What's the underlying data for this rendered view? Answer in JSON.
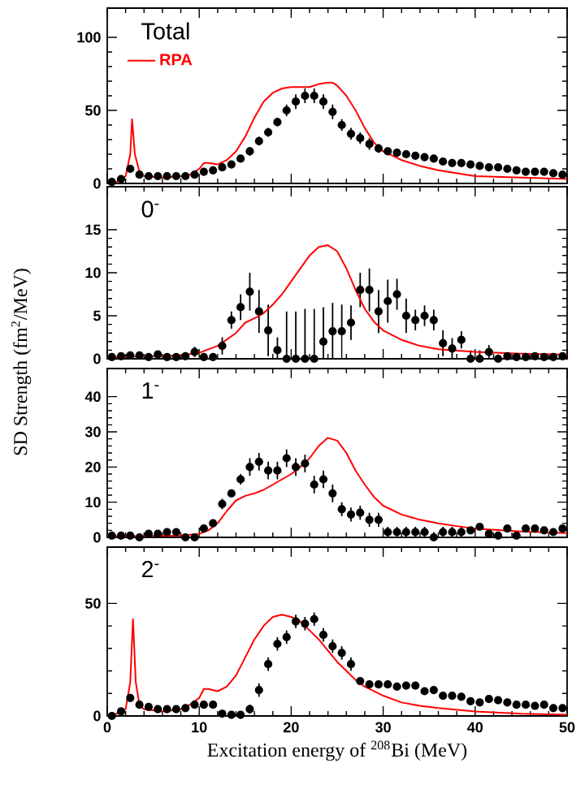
{
  "chart_data": [
    {
      "type": "scatter",
      "title": "Total",
      "xlim": [
        0,
        50
      ],
      "xticks": [
        0,
        10,
        20,
        30,
        40,
        50
      ],
      "ylim": [
        0,
        120
      ],
      "yticks": [
        0,
        50,
        100
      ],
      "tick_labels": "y",
      "legend": "top left",
      "series": [
        {
          "color": "#000000",
          "marker": "circle",
          "x": [
            0.5,
            1.5,
            2.5,
            3.5,
            4.5,
            5.5,
            6.5,
            7.5,
            8.5,
            9.5,
            10.5,
            11.5,
            12.5,
            13.5,
            14.5,
            15.5,
            16.5,
            17.5,
            18.5,
            19.5,
            20.5,
            21.5,
            22.5,
            23.5,
            24.5,
            25.5,
            26.5,
            27.5,
            28.5,
            29.5,
            30.5,
            31.5,
            32.5,
            33.5,
            34.5,
            35.5,
            36.5,
            37.5,
            38.5,
            39.5,
            40.5,
            41.5,
            42.5,
            43.5,
            44.5,
            45.5,
            46.5,
            47.5,
            48.5,
            49.5
          ],
          "values": [
            1,
            3,
            10,
            6,
            5,
            5,
            5,
            5,
            5,
            6,
            8,
            9,
            11,
            13,
            17,
            22,
            29,
            35,
            42,
            50,
            56,
            60,
            60,
            56,
            49,
            40,
            34,
            31,
            27,
            24,
            22,
            21,
            20,
            19,
            18,
            17,
            15,
            14,
            14,
            13,
            12,
            11,
            11,
            10,
            9,
            8,
            8,
            8,
            7,
            6
          ],
          "errors": [
            [
              0,
              2
            ],
            1,
            1.5,
            1,
            1,
            1,
            1,
            1,
            1,
            1,
            1.5,
            1.5,
            1.5,
            1.5,
            2,
            3,
            3,
            3,
            3,
            4,
            5,
            5,
            5,
            5,
            5,
            4,
            4,
            4,
            4,
            3,
            2.5,
            2.5,
            2.5,
            2.5,
            2.5,
            2.5,
            2.5,
            2,
            2,
            2,
            1.5,
            1.5,
            1.5,
            1.5,
            1.5,
            1.5,
            1.5,
            1.5,
            1.5,
            1.5
          ]
        },
        {
          "name": "RPA",
          "type": "line",
          "color": "#ff0000",
          "marker": "none",
          "x": [
            0,
            1,
            2,
            2.5,
            2.7,
            3,
            3.5,
            4,
            6,
            8,
            9,
            10,
            10.5,
            11,
            12,
            13,
            14,
            15,
            16,
            17,
            18,
            19,
            20,
            22,
            23,
            24,
            24.5,
            25,
            26,
            27,
            28,
            29,
            30,
            32,
            34,
            36,
            38,
            40,
            45,
            50
          ],
          "values": [
            0,
            1,
            5,
            20,
            44,
            20,
            8,
            5,
            4,
            5,
            6,
            10,
            14,
            14,
            13,
            16,
            22,
            32,
            45,
            56,
            62,
            65,
            66,
            66,
            68,
            69,
            69,
            67,
            60,
            50,
            38,
            28,
            22,
            16,
            12,
            9,
            7,
            5,
            4,
            3
          ]
        }
      ]
    },
    {
      "type": "scatter",
      "title": "0$^{-}$",
      "ylabel": "SD Strength (fm$^{2}$/MeV)",
      "xlim": [
        0,
        50
      ],
      "xticks": [
        0,
        10,
        20,
        30,
        40,
        50
      ],
      "ylim": [
        0,
        20
      ],
      "yticks": [
        0,
        5,
        10,
        15
      ],
      "tick_labels": "y",
      "series": [
        {
          "color": "#000000",
          "marker": "circle",
          "x": [
            0.5,
            1.5,
            2.5,
            3.5,
            4.5,
            5.5,
            6.5,
            7.5,
            8.5,
            9.5,
            10.5,
            11.5,
            12.5,
            13.5,
            14.5,
            15.5,
            16.5,
            17.5,
            18.5,
            19.5,
            20.5,
            21.5,
            22.5,
            23.5,
            24.5,
            25.5,
            26.5,
            27.5,
            28.5,
            29.5,
            30.5,
            31.5,
            32.5,
            33.5,
            34.5,
            35.5,
            36.5,
            37.5,
            38.5,
            39.5,
            40.5,
            41.5,
            42.5,
            43.5,
            44.5,
            45.5,
            46.5,
            47.5,
            48.5,
            49.5
          ],
          "values": [
            0.2,
            0.3,
            0.4,
            0.4,
            0.2,
            0.5,
            0.2,
            0.2,
            0.3,
            0.8,
            0.2,
            0.2,
            1.5,
            4.5,
            6,
            7.8,
            5.5,
            3.3,
            1,
            0,
            0,
            0,
            0,
            2,
            3.2,
            3.2,
            4.2,
            8,
            8,
            5.5,
            6.7,
            7.5,
            5,
            4.5,
            5,
            4.5,
            1.8,
            1.2,
            2.2,
            0,
            0,
            0.8,
            0,
            0.3,
            0.2,
            0.2,
            0.3,
            0.2,
            0.2,
            0.3
          ],
          "errors": [
            0.2,
            0.3,
            0.3,
            0.3,
            0.2,
            0.3,
            0.2,
            0.2,
            0.3,
            0.6,
            0.2,
            0.2,
            1,
            1,
            1.5,
            2.2,
            2.5,
            3,
            [
              0,
              2.5
            ],
            [
              0,
              5.5
            ],
            [
              0,
              5.5
            ],
            [
              0,
              5.8
            ],
            [
              0,
              5.8
            ],
            [
              0,
              6
            ],
            [
              0,
              6.5
            ],
            [
              0,
              6.3
            ],
            2,
            2,
            2.5,
            2.5,
            2.5,
            1.8,
            2,
            1.2,
            1.2,
            1.2,
            1.5,
            1.2,
            1,
            [
              0,
              1
            ],
            [
              0,
              1
            ],
            0.8,
            [
              0,
              0.5
            ],
            0.3,
            0.2,
            0.2,
            0.3,
            0.2,
            0.2,
            0.3
          ]
        },
        {
          "type": "line",
          "color": "#ff0000",
          "marker": "none",
          "x": [
            0,
            5,
            8,
            10,
            12,
            14,
            15,
            16,
            17,
            18,
            19,
            20,
            21,
            22,
            23,
            24,
            25,
            26,
            27,
            28,
            29,
            30,
            32,
            34,
            36,
            40,
            45,
            50
          ],
          "values": [
            0.2,
            0.3,
            0.4,
            0.7,
            1.5,
            3,
            4.2,
            4.7,
            5.3,
            6.3,
            7.5,
            9,
            10.5,
            12,
            13,
            13.2,
            12.5,
            10.5,
            8,
            5.8,
            4.3,
            3.3,
            2.2,
            1.5,
            1.1,
            0.8,
            0.6,
            0.5
          ]
        }
      ]
    },
    {
      "type": "scatter",
      "title": "1$^{-}$",
      "xlim": [
        0,
        50
      ],
      "xticks": [
        0,
        10,
        20,
        30,
        40,
        50
      ],
      "ylim": [
        0,
        48
      ],
      "yticks": [
        0,
        10,
        20,
        30,
        40
      ],
      "tick_labels": "y",
      "series": [
        {
          "color": "#000000",
          "marker": "circle",
          "x": [
            0.5,
            1.5,
            2.5,
            3.5,
            4.5,
            5.5,
            6.5,
            7.5,
            8.5,
            9.5,
            10.5,
            11.5,
            12.5,
            13.5,
            14.5,
            15.5,
            16.5,
            17.5,
            18.5,
            19.5,
            20.5,
            21.5,
            22.5,
            23.5,
            24.5,
            25.5,
            26.5,
            27.5,
            28.5,
            29.5,
            30.5,
            31.5,
            32.5,
            33.5,
            34.5,
            35.5,
            36.5,
            37.5,
            38.5,
            39.5,
            40.5,
            41.5,
            42.5,
            43.5,
            44.5,
            45.5,
            46.5,
            47.5,
            48.5,
            49.5
          ],
          "values": [
            0.5,
            0.5,
            0.5,
            0,
            1,
            1,
            1.5,
            1.5,
            0,
            0,
            2.5,
            4,
            9.5,
            12.5,
            16.5,
            20,
            21.5,
            19,
            19,
            22.5,
            20,
            21,
            15,
            16.5,
            12.5,
            8,
            6.5,
            7,
            5,
            5,
            1.5,
            1.5,
            1.5,
            1.5,
            1.5,
            0,
            1.5,
            1.5,
            1.5,
            2,
            3,
            1,
            0.5,
            2.5,
            0.5,
            2.5,
            2.5,
            2,
            1.5,
            2.5
          ],
          "errors": [
            0.5,
            0.5,
            0.5,
            [
              0,
              1
            ],
            1,
            1,
            1,
            1,
            [
              0,
              1
            ],
            [
              0,
              1
            ],
            1,
            1,
            1.5,
            1,
            1.5,
            2.5,
            2.5,
            2.5,
            2.5,
            2.5,
            2.5,
            2.5,
            2.5,
            2.5,
            2.5,
            2,
            2,
            2,
            2,
            2,
            1.5,
            1.5,
            1.5,
            1.5,
            1.5,
            [
              0,
              1.5
            ],
            1.5,
            1.5,
            1.5,
            1,
            1,
            1,
            0.5,
            1,
            0.5,
            1,
            1,
            1,
            1,
            1
          ]
        },
        {
          "type": "line",
          "color": "#ff0000",
          "marker": "none",
          "x": [
            0,
            8,
            10,
            11,
            12,
            13,
            14,
            15,
            16,
            17,
            18,
            19,
            20,
            21,
            22,
            23,
            24,
            25,
            26,
            27,
            28,
            29,
            30,
            32,
            34,
            36,
            38,
            40,
            45,
            50
          ],
          "values": [
            0.3,
            0.5,
            1,
            2,
            4,
            7.5,
            10.5,
            11.8,
            12.5,
            13.5,
            15,
            16.5,
            18,
            20,
            22.5,
            26,
            28.3,
            27.5,
            24,
            19,
            15,
            11.5,
            9,
            6.5,
            5,
            4,
            3.2,
            2.5,
            1.7,
            1.2
          ]
        }
      ]
    },
    {
      "type": "scatter",
      "title": "2$^{-}$",
      "xlabel": "Excitation energy of $^{208}$Bi (MeV)",
      "xlim": [
        0,
        50
      ],
      "xticks": [
        0,
        10,
        20,
        30,
        40,
        50
      ],
      "ylim": [
        0,
        75
      ],
      "yticks": [
        0,
        50
      ],
      "series": [
        {
          "color": "#000000",
          "marker": "circle",
          "x": [
            0.5,
            1.5,
            2.5,
            3.5,
            4.5,
            5.5,
            6.5,
            7.5,
            8.5,
            9.5,
            10.5,
            11.5,
            12.5,
            13.5,
            14.5,
            15.5,
            16.5,
            17.5,
            18.5,
            19.5,
            20.5,
            21.5,
            22.5,
            23.5,
            24.5,
            25.5,
            26.5,
            27.5,
            28.5,
            29.5,
            30.5,
            31.5,
            32.5,
            33.5,
            34.5,
            35.5,
            36.5,
            37.5,
            38.5,
            39.5,
            40.5,
            41.5,
            42.5,
            43.5,
            44.5,
            45.5,
            46.5,
            47.5,
            48.5,
            49.5
          ],
          "values": [
            0,
            2,
            8,
            5,
            4,
            3,
            3,
            3,
            3.5,
            5,
            5,
            5,
            1,
            0.5,
            0.5,
            3,
            11.5,
            23,
            32,
            35,
            42,
            41,
            43,
            36,
            31,
            28,
            23,
            15.5,
            14,
            14,
            14,
            13,
            13.5,
            13.5,
            11,
            11.5,
            9,
            9,
            8.5,
            6.5,
            6,
            7.5,
            7,
            6,
            5,
            5,
            4.5,
            5,
            3.5,
            3.5
          ],
          "errors": [
            [
              0,
              1
            ],
            1,
            1.5,
            1,
            1,
            1,
            1,
            1,
            1,
            1,
            1,
            1,
            1,
            [
              0,
              1.5
            ],
            [
              0,
              1.5
            ],
            2,
            3,
            3,
            3,
            3,
            3,
            3,
            3,
            3,
            3,
            3,
            3,
            1.5,
            1.5,
            1.5,
            1.5,
            1.5,
            1.5,
            1.5,
            1.5,
            1.5,
            1.5,
            1.5,
            1.5,
            1.5,
            1,
            1,
            1,
            1,
            1,
            1,
            1,
            1,
            1,
            1
          ]
        },
        {
          "type": "line",
          "color": "#ff0000",
          "marker": "none",
          "x": [
            0,
            1,
            2,
            2.5,
            2.8,
            3.1,
            3.5,
            4,
            6,
            8,
            9,
            10,
            10.5,
            11,
            12,
            13,
            14,
            15,
            16,
            17,
            18,
            19,
            20,
            21,
            22,
            23,
            24,
            25,
            26,
            27,
            28,
            30,
            32,
            34,
            36,
            40,
            45,
            50
          ],
          "values": [
            0,
            1,
            3,
            15,
            43,
            15,
            5,
            3,
            2,
            3,
            5,
            8,
            12,
            12,
            11,
            13,
            18,
            26,
            34,
            40,
            44,
            45,
            44,
            42,
            38,
            34,
            29,
            24,
            20,
            16,
            13,
            9,
            6,
            4.5,
            3.5,
            2,
            1,
            0.5
          ]
        }
      ]
    }
  ]
}
